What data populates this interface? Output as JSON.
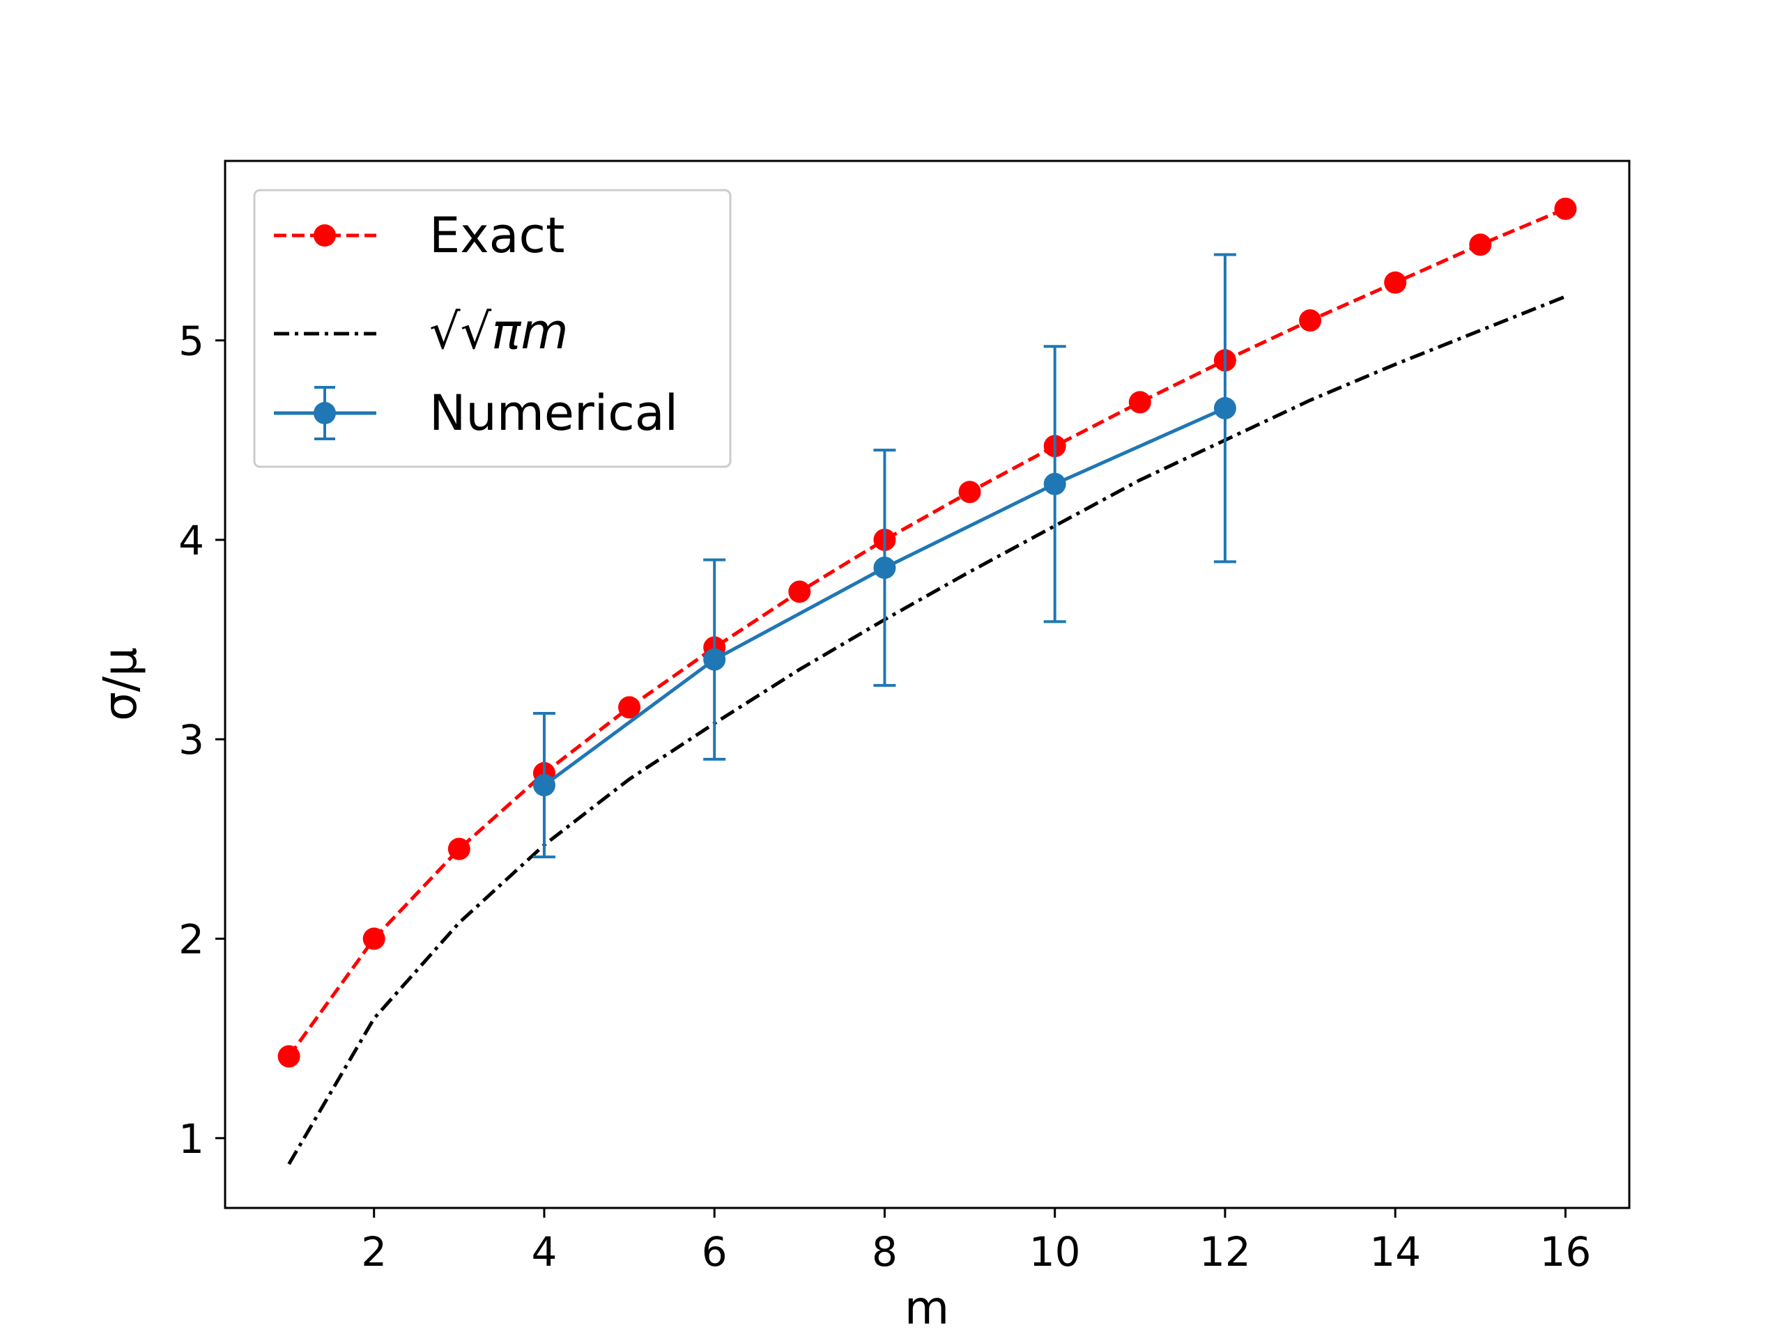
{
  "chart_data": {
    "type": "line",
    "title": "",
    "xlabel": "m",
    "ylabel": "σ/μ",
    "xlim": [
      0.25,
      16.75
    ],
    "ylim": [
      0.65,
      5.9
    ],
    "xticks": [
      2,
      4,
      6,
      8,
      10,
      12,
      14,
      16
    ],
    "yticks": [
      1,
      2,
      3,
      4,
      5
    ],
    "xtick_labels": [
      "2",
      "4",
      "6",
      "8",
      "10",
      "12",
      "14",
      "16"
    ],
    "ytick_labels": [
      "1",
      "2",
      "3",
      "4",
      "5"
    ],
    "grid": false,
    "legend_position": "top-left",
    "series": [
      {
        "name": "Exact",
        "style": "dashed-markers",
        "color": "#ff0000",
        "x": [
          1,
          2,
          3,
          4,
          5,
          6,
          7,
          8,
          9,
          10,
          11,
          12,
          13,
          14,
          15,
          16
        ],
        "values": [
          1.41,
          2.0,
          2.45,
          2.83,
          3.16,
          3.46,
          3.74,
          4.0,
          4.24,
          4.47,
          4.69,
          4.9,
          5.1,
          5.29,
          5.48,
          5.66
        ]
      },
      {
        "name": "√√πm",
        "style": "dashdot",
        "color": "#000000",
        "x": [
          1,
          2,
          3,
          4,
          5,
          6,
          7,
          8,
          9,
          10,
          11,
          12,
          13,
          14,
          15,
          16
        ],
        "values": [
          0.87,
          1.6,
          2.08,
          2.47,
          2.8,
          3.08,
          3.35,
          3.6,
          3.84,
          4.07,
          4.3,
          4.5,
          4.7,
          4.88,
          5.05,
          5.22
        ]
      },
      {
        "name": "Numerical",
        "style": "solid-errorbar",
        "color": "#1f77b4",
        "x": [
          4,
          6,
          8,
          10,
          12
        ],
        "values": [
          2.77,
          3.4,
          3.86,
          4.28,
          4.66
        ],
        "errors": [
          0.36,
          0.5,
          0.59,
          0.69,
          0.77
        ]
      }
    ],
    "legend_entries": [
      "Exact",
      "√√πm",
      "Numerical"
    ]
  }
}
